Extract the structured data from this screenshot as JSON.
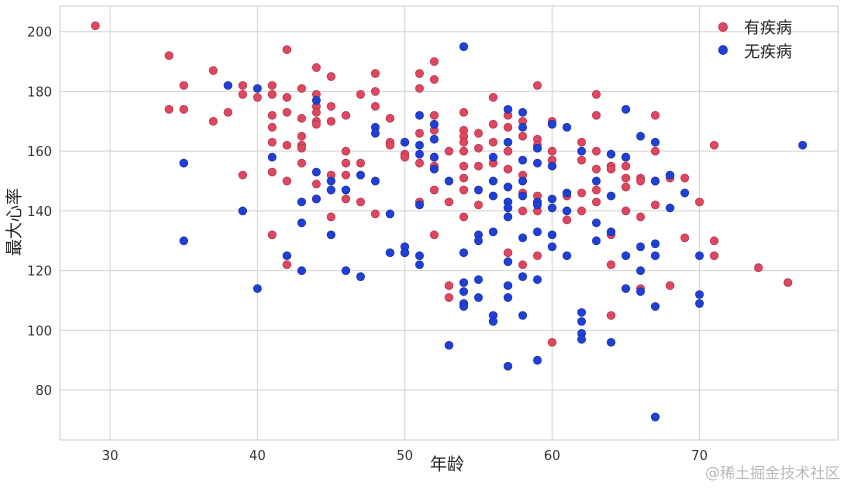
{
  "chart_data": {
    "type": "scatter",
    "title": "",
    "xlabel": "年龄",
    "ylabel": "最大心率",
    "xlim": [
      26.6,
      79.4
    ],
    "ylim": [
      63.3,
      208.6
    ],
    "xticks": [
      "30",
      "40",
      "50",
      "60",
      "70"
    ],
    "yticks": [
      "80",
      "100",
      "120",
      "140",
      "160",
      "180",
      "200"
    ],
    "grid": true,
    "legend_position": "top-right",
    "series": [
      {
        "name": "有疾病",
        "color": "#e0475f",
        "points": [
          [
            29,
            202
          ],
          [
            34,
            192
          ],
          [
            34,
            174
          ],
          [
            35,
            182
          ],
          [
            35,
            174
          ],
          [
            37,
            187
          ],
          [
            37,
            170
          ],
          [
            38,
            173
          ],
          [
            39,
            182
          ],
          [
            39,
            179
          ],
          [
            39,
            152
          ],
          [
            40,
            178
          ],
          [
            41,
            182
          ],
          [
            41,
            179
          ],
          [
            41,
            172
          ],
          [
            41,
            168
          ],
          [
            41,
            163
          ],
          [
            41,
            153
          ],
          [
            41,
            132
          ],
          [
            42,
            194
          ],
          [
            42,
            178
          ],
          [
            42,
            173
          ],
          [
            42,
            162
          ],
          [
            42,
            150
          ],
          [
            42,
            122
          ],
          [
            43,
            181
          ],
          [
            43,
            171
          ],
          [
            43,
            165
          ],
          [
            43,
            162
          ],
          [
            43,
            161
          ],
          [
            43,
            156
          ],
          [
            44,
            188
          ],
          [
            44,
            179
          ],
          [
            44,
            175
          ],
          [
            44,
            173
          ],
          [
            44,
            170
          ],
          [
            44,
            169
          ],
          [
            44,
            149
          ],
          [
            44,
            144
          ],
          [
            45,
            185
          ],
          [
            45,
            175
          ],
          [
            45,
            170
          ],
          [
            45,
            152
          ],
          [
            45,
            138
          ],
          [
            46,
            172
          ],
          [
            46,
            160
          ],
          [
            46,
            156
          ],
          [
            46,
            152
          ],
          [
            46,
            144
          ],
          [
            47,
            179
          ],
          [
            47,
            156
          ],
          [
            47,
            143
          ],
          [
            48,
            186
          ],
          [
            48,
            180
          ],
          [
            48,
            175
          ],
          [
            48,
            139
          ],
          [
            49,
            171
          ],
          [
            49,
            163
          ],
          [
            49,
            162
          ],
          [
            50,
            163
          ],
          [
            50,
            159
          ],
          [
            50,
            158
          ],
          [
            50,
            126
          ],
          [
            51,
            186
          ],
          [
            51,
            181
          ],
          [
            51,
            166
          ],
          [
            51,
            156
          ],
          [
            51,
            143
          ],
          [
            52,
            190
          ],
          [
            52,
            184
          ],
          [
            52,
            172
          ],
          [
            52,
            167
          ],
          [
            52,
            158
          ],
          [
            52,
            155
          ],
          [
            52,
            147
          ],
          [
            52,
            132
          ],
          [
            53,
            160
          ],
          [
            53,
            115
          ],
          [
            53,
            111
          ],
          [
            53,
            143
          ],
          [
            54,
            173
          ],
          [
            54,
            167
          ],
          [
            54,
            165
          ],
          [
            54,
            163
          ],
          [
            54,
            160
          ],
          [
            54,
            155
          ],
          [
            54,
            151
          ],
          [
            54,
            147
          ],
          [
            54,
            138
          ],
          [
            55,
            166
          ],
          [
            55,
            161
          ],
          [
            55,
            155
          ],
          [
            55,
            142
          ],
          [
            56,
            178
          ],
          [
            56,
            169
          ],
          [
            56,
            163
          ],
          [
            56,
            156
          ],
          [
            57,
            172
          ],
          [
            57,
            168
          ],
          [
            57,
            160
          ],
          [
            57,
            154
          ],
          [
            57,
            126
          ],
          [
            58,
            170
          ],
          [
            58,
            165
          ],
          [
            58,
            152
          ],
          [
            58,
            146
          ],
          [
            58,
            140
          ],
          [
            58,
            122
          ],
          [
            59,
            182
          ],
          [
            59,
            164
          ],
          [
            59,
            162
          ],
          [
            59,
            161
          ],
          [
            59,
            145
          ],
          [
            59,
            140
          ],
          [
            59,
            125
          ],
          [
            60,
            170
          ],
          [
            60,
            160
          ],
          [
            60,
            157
          ],
          [
            60,
            96
          ],
          [
            61,
            145
          ],
          [
            61,
            137
          ],
          [
            62,
            163
          ],
          [
            62,
            157
          ],
          [
            62,
            146
          ],
          [
            62,
            140
          ],
          [
            63,
            179
          ],
          [
            63,
            172
          ],
          [
            63,
            160
          ],
          [
            63,
            154
          ],
          [
            63,
            147
          ],
          [
            63,
            143
          ],
          [
            64,
            155
          ],
          [
            64,
            154
          ],
          [
            64,
            132
          ],
          [
            64,
            122
          ],
          [
            64,
            105
          ],
          [
            65,
            158
          ],
          [
            65,
            155
          ],
          [
            65,
            151
          ],
          [
            65,
            148
          ],
          [
            65,
            140
          ],
          [
            66,
            151
          ],
          [
            66,
            150
          ],
          [
            66,
            138
          ],
          [
            66,
            114
          ],
          [
            67,
            172
          ],
          [
            67,
            160
          ],
          [
            67,
            150
          ],
          [
            67,
            142
          ],
          [
            68,
            151
          ],
          [
            68,
            115
          ],
          [
            69,
            151
          ],
          [
            69,
            131
          ],
          [
            70,
            143
          ],
          [
            71,
            162
          ],
          [
            71,
            130
          ],
          [
            71,
            125
          ],
          [
            74,
            121
          ],
          [
            76,
            116
          ]
        ]
      },
      {
        "name": "无疾病",
        "color": "#1f3fd6",
        "points": [
          [
            35,
            156
          ],
          [
            35,
            130
          ],
          [
            38,
            182
          ],
          [
            39,
            140
          ],
          [
            40,
            181
          ],
          [
            40,
            114
          ],
          [
            41,
            158
          ],
          [
            42,
            125
          ],
          [
            43,
            143
          ],
          [
            43,
            136
          ],
          [
            43,
            120
          ],
          [
            44,
            177
          ],
          [
            44,
            153
          ],
          [
            44,
            144
          ],
          [
            45,
            150
          ],
          [
            45,
            147
          ],
          [
            45,
            132
          ],
          [
            46,
            147
          ],
          [
            46,
            120
          ],
          [
            47,
            152
          ],
          [
            47,
            118
          ],
          [
            48,
            168
          ],
          [
            48,
            166
          ],
          [
            48,
            150
          ],
          [
            49,
            139
          ],
          [
            49,
            126
          ],
          [
            50,
            163
          ],
          [
            50,
            128
          ],
          [
            50,
            126
          ],
          [
            51,
            172
          ],
          [
            51,
            162
          ],
          [
            51,
            159
          ],
          [
            51,
            142
          ],
          [
            51,
            125
          ],
          [
            51,
            122
          ],
          [
            52,
            169
          ],
          [
            52,
            164
          ],
          [
            52,
            158
          ],
          [
            52,
            154
          ],
          [
            53,
            150
          ],
          [
            53,
            95
          ],
          [
            54,
            195
          ],
          [
            54,
            126
          ],
          [
            54,
            116
          ],
          [
            54,
            113
          ],
          [
            54,
            109
          ],
          [
            54,
            108
          ],
          [
            55,
            147
          ],
          [
            55,
            132
          ],
          [
            55,
            130
          ],
          [
            55,
            117
          ],
          [
            55,
            111
          ],
          [
            56,
            158
          ],
          [
            56,
            150
          ],
          [
            56,
            145
          ],
          [
            56,
            133
          ],
          [
            56,
            105
          ],
          [
            56,
            103
          ],
          [
            57,
            174
          ],
          [
            57,
            163
          ],
          [
            57,
            148
          ],
          [
            57,
            143
          ],
          [
            57,
            141
          ],
          [
            57,
            138
          ],
          [
            57,
            123
          ],
          [
            57,
            115
          ],
          [
            57,
            111
          ],
          [
            57,
            88
          ],
          [
            58,
            173
          ],
          [
            58,
            168
          ],
          [
            58,
            157
          ],
          [
            58,
            150
          ],
          [
            58,
            145
          ],
          [
            58,
            131
          ],
          [
            58,
            118
          ],
          [
            58,
            105
          ],
          [
            59,
            161
          ],
          [
            59,
            156
          ],
          [
            59,
            143
          ],
          [
            59,
            142
          ],
          [
            59,
            133
          ],
          [
            59,
            117
          ],
          [
            59,
            90
          ],
          [
            60,
            169
          ],
          [
            60,
            155
          ],
          [
            60,
            144
          ],
          [
            60,
            141
          ],
          [
            60,
            132
          ],
          [
            60,
            128
          ],
          [
            61,
            168
          ],
          [
            61,
            146
          ],
          [
            61,
            140
          ],
          [
            61,
            125
          ],
          [
            62,
            160
          ],
          [
            62,
            106
          ],
          [
            62,
            103
          ],
          [
            62,
            99
          ],
          [
            62,
            97
          ],
          [
            63,
            150
          ],
          [
            63,
            136
          ],
          [
            63,
            130
          ],
          [
            64,
            159
          ],
          [
            64,
            145
          ],
          [
            64,
            133
          ],
          [
            64,
            96
          ],
          [
            65,
            174
          ],
          [
            65,
            158
          ],
          [
            65,
            125
          ],
          [
            65,
            114
          ],
          [
            66,
            165
          ],
          [
            66,
            128
          ],
          [
            66,
            120
          ],
          [
            66,
            113
          ],
          [
            67,
            163
          ],
          [
            67,
            150
          ],
          [
            67,
            129
          ],
          [
            67,
            125
          ],
          [
            67,
            108
          ],
          [
            67,
            71
          ],
          [
            68,
            152
          ],
          [
            68,
            141
          ],
          [
            69,
            146
          ],
          [
            70,
            125
          ],
          [
            70,
            112
          ],
          [
            70,
            109
          ],
          [
            77,
            162
          ]
        ]
      }
    ]
  },
  "watermark": "@稀土掘金技术社区"
}
